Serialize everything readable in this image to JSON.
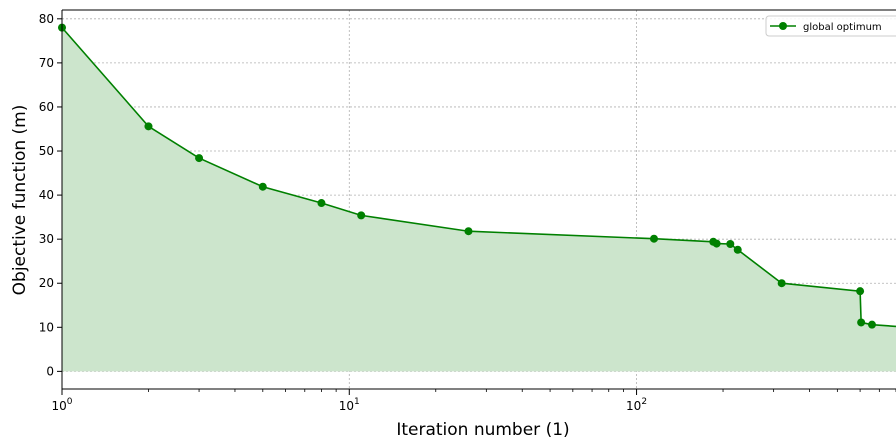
{
  "chart_data": {
    "type": "area",
    "xscale": "log",
    "xlabel": "Iteration number (1)",
    "ylabel": "Objective function (m)",
    "xlim": [
      1,
      800
    ],
    "ylim": [
      -4,
      82
    ],
    "grid": true,
    "legend_position": "top-right",
    "x_ticks": [
      {
        "value": 1,
        "base": "10",
        "exp": "0"
      },
      {
        "value": 10,
        "base": "10",
        "exp": "1"
      },
      {
        "value": 100,
        "base": "10",
        "exp": "2"
      }
    ],
    "y_ticks": [
      0,
      10,
      20,
      30,
      40,
      50,
      60,
      70,
      80
    ],
    "series": [
      {
        "name": "global optimum",
        "color": "#008000",
        "fill_color": "#cce5cc",
        "x": [
          1,
          2,
          3,
          5,
          8,
          11,
          26,
          115,
          185,
          190,
          212,
          225,
          320,
          600,
          605,
          660,
          800
        ],
        "y": [
          78,
          55.6,
          48.4,
          41.9,
          38.2,
          35.4,
          31.8,
          30.1,
          29.4,
          29.0,
          28.9,
          27.6,
          20.0,
          18.2,
          11.1,
          10.6,
          10.2
        ]
      }
    ]
  }
}
